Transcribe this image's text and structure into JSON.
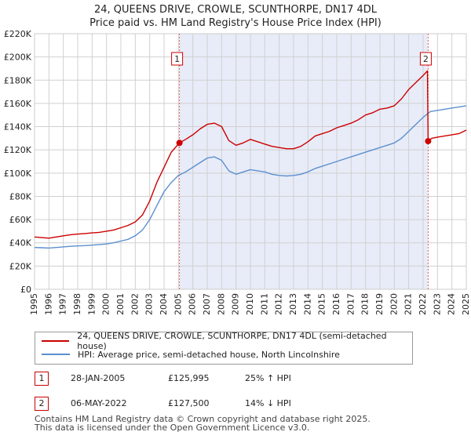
{
  "title": "24, QUEENS DRIVE, CROWLE, SCUNTHORPE, DN17 4DL",
  "subtitle": "Price paid vs. HM Land Registry's House Price Index (HPI)",
  "chart_data": {
    "type": "line",
    "title": "24, QUEENS DRIVE, CROWLE, SCUNTHORPE, DN17 4DL",
    "subtitle": "Price paid vs. HM Land Registry's House Price Index (HPI)",
    "xlabel": "",
    "ylabel": "",
    "xlim": [
      1995,
      2025
    ],
    "ylim": [
      0,
      220000
    ],
    "y_ticks": [
      0,
      20000,
      40000,
      60000,
      80000,
      100000,
      120000,
      140000,
      160000,
      180000,
      200000,
      220000
    ],
    "y_tick_labels": [
      "£0",
      "£20K",
      "£40K",
      "£60K",
      "£80K",
      "£100K",
      "£120K",
      "£140K",
      "£160K",
      "£180K",
      "£200K",
      "£220K"
    ],
    "x_ticks": [
      1995,
      1996,
      1997,
      1998,
      1999,
      2000,
      2001,
      2002,
      2003,
      2004,
      2005,
      2006,
      2007,
      2008,
      2009,
      2010,
      2011,
      2012,
      2013,
      2014,
      2015,
      2016,
      2017,
      2018,
      2019,
      2020,
      2021,
      2022,
      2023,
      2024,
      2025
    ],
    "x_tick_labels": [
      "1995",
      "1996",
      "1997",
      "1998",
      "1999",
      "2000",
      "2001",
      "2002",
      "2003",
      "2004",
      "2005",
      "2006",
      "2007",
      "2008",
      "2009",
      "2010",
      "2011",
      "2012",
      "2013",
      "2014",
      "2015",
      "2016",
      "2017",
      "2018",
      "2019",
      "2020",
      "2021",
      "2022",
      "2023",
      "2024",
      "2025"
    ],
    "grid": true,
    "shaded_region": [
      2005.07,
      2022.35
    ],
    "series": [
      {
        "name": "24, QUEENS DRIVE, CROWLE, SCUNTHORPE, DN17 4DL (semi-detached house)",
        "color": "#cc0000",
        "x": [
          1995.0,
          1995.5,
          1996.0,
          1996.5,
          1997.0,
          1997.5,
          1998.0,
          1998.5,
          1999.0,
          1999.5,
          2000.0,
          2000.5,
          2001.0,
          2001.5,
          2002.0,
          2002.5,
          2003.0,
          2003.5,
          2004.0,
          2004.5,
          2005.07,
          2005.5,
          2006.0,
          2006.5,
          2007.0,
          2007.5,
          2008.0,
          2008.5,
          2009.0,
          2009.5,
          2010.0,
          2010.5,
          2011.0,
          2011.5,
          2012.0,
          2012.5,
          2013.0,
          2013.5,
          2014.0,
          2014.5,
          2015.0,
          2015.5,
          2016.0,
          2016.5,
          2017.0,
          2017.5,
          2018.0,
          2018.5,
          2019.0,
          2019.5,
          2020.0,
          2020.5,
          2021.0,
          2021.5,
          2022.0,
          2022.3,
          2022.35,
          2022.6,
          2023.0,
          2023.5,
          2024.0,
          2024.5,
          2025.0
        ],
        "values": [
          45000,
          44500,
          44000,
          45000,
          46000,
          47000,
          47500,
          48000,
          48500,
          49000,
          50000,
          51000,
          53000,
          55000,
          58000,
          64000,
          76000,
          92000,
          105000,
          118000,
          125995,
          129000,
          133000,
          138000,
          142000,
          143000,
          140000,
          128000,
          124000,
          126000,
          129000,
          127000,
          125000,
          123000,
          122000,
          121000,
          121000,
          123000,
          127000,
          132000,
          134000,
          136000,
          139000,
          141000,
          143000,
          146000,
          150000,
          152000,
          155000,
          156000,
          158000,
          164000,
          172000,
          178000,
          184000,
          188000,
          127500,
          130000,
          131000,
          132000,
          133000,
          134000,
          137000
        ]
      },
      {
        "name": "HPI: Average price, semi-detached house, North Lincolnshire",
        "color": "#5b8fcf",
        "x": [
          1995.0,
          1995.5,
          1996.0,
          1996.5,
          1997.0,
          1997.5,
          1998.0,
          1998.5,
          1999.0,
          1999.5,
          2000.0,
          2000.5,
          2001.0,
          2001.5,
          2002.0,
          2002.5,
          2003.0,
          2003.5,
          2004.0,
          2004.5,
          2005.0,
          2005.5,
          2006.0,
          2006.5,
          2007.0,
          2007.5,
          2008.0,
          2008.5,
          2009.0,
          2009.5,
          2010.0,
          2010.5,
          2011.0,
          2011.5,
          2012.0,
          2012.5,
          2013.0,
          2013.5,
          2014.0,
          2014.5,
          2015.0,
          2015.5,
          2016.0,
          2016.5,
          2017.0,
          2017.5,
          2018.0,
          2018.5,
          2019.0,
          2019.5,
          2020.0,
          2020.5,
          2021.0,
          2021.5,
          2022.0,
          2022.5,
          2023.0,
          2023.5,
          2024.0,
          2024.5,
          2025.0
        ],
        "values": [
          36000,
          35800,
          35500,
          36000,
          36500,
          37000,
          37300,
          37600,
          38000,
          38500,
          39000,
          40000,
          41500,
          43000,
          46000,
          51000,
          60000,
          72000,
          84000,
          92000,
          98000,
          101000,
          105000,
          109000,
          113000,
          114000,
          111000,
          102000,
          99000,
          101000,
          103000,
          102000,
          101000,
          99000,
          98000,
          97500,
          98000,
          99000,
          101000,
          104000,
          106000,
          108000,
          110000,
          112000,
          114000,
          116000,
          118000,
          120000,
          122000,
          124000,
          126000,
          130000,
          136000,
          142000,
          148000,
          153000,
          154000,
          155000,
          156000,
          157000,
          158000
        ]
      }
    ],
    "annotations": [
      {
        "label": "1",
        "x": 2005.07,
        "value": 125995
      },
      {
        "label": "2",
        "x": 2022.35,
        "value": 127500
      }
    ]
  },
  "legend": {
    "items": [
      {
        "label": "24, QUEENS DRIVE, CROWLE, SCUNTHORPE, DN17 4DL (semi-detached house)",
        "color": "#cc0000"
      },
      {
        "label": "HPI: Average price, semi-detached house, North Lincolnshire",
        "color": "#5b8fcf"
      }
    ]
  },
  "transactions": [
    {
      "num": "1",
      "date": "28-JAN-2005",
      "price": "£125,995",
      "hpi": "25% ↑ HPI"
    },
    {
      "num": "2",
      "date": "06-MAY-2022",
      "price": "£127,500",
      "hpi": "14% ↓ HPI"
    }
  ],
  "footer": {
    "line1": "Contains HM Land Registry data © Crown copyright and database right 2025.",
    "line2": "This data is licensed under the Open Government Licence v3.0."
  }
}
